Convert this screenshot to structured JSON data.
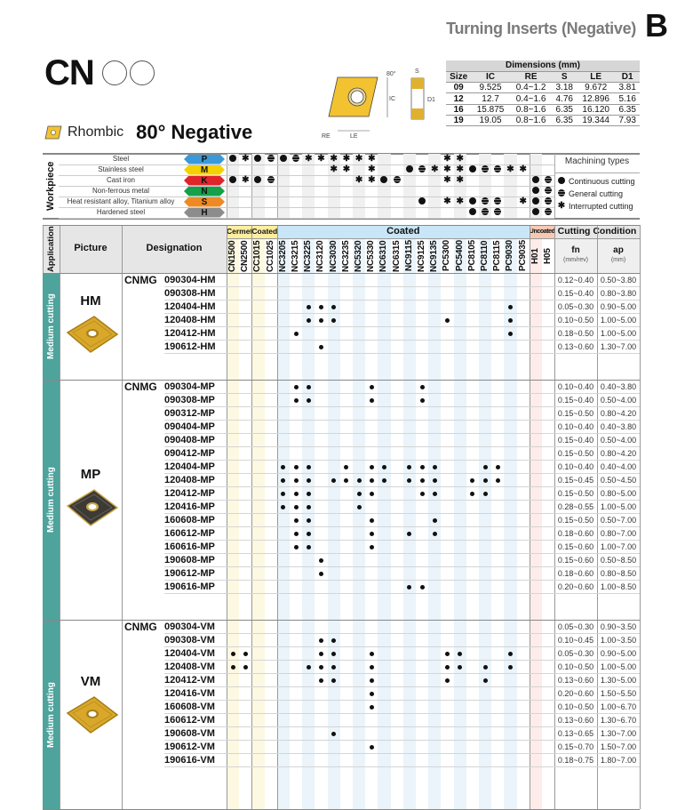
{
  "header": {
    "section_title": "Turning Inserts (Negative)",
    "chapter": "B",
    "shape_code": "CN",
    "shape_name": "Rhombic",
    "shape_desc": "80° Negative"
  },
  "drawing": {
    "angle": "80°",
    "labels": [
      "S",
      "IC",
      "D1",
      "RE",
      "LE"
    ]
  },
  "dimensions": {
    "title": "Dimensions (mm)",
    "columns": [
      "Size",
      "IC",
      "RE",
      "S",
      "LE",
      "D1"
    ],
    "rows": [
      [
        "09",
        "9.525",
        "0.4~1.2",
        "3.18",
        "9.672",
        "3.81"
      ],
      [
        "12",
        "12.7",
        "0.4~1.6",
        "4.76",
        "12.896",
        "5.16"
      ],
      [
        "16",
        "15.875",
        "0.8~1.6",
        "6.35",
        "16.120",
        "6.35"
      ],
      [
        "19",
        "19.05",
        "0.8~1.6",
        "6.35",
        "19.344",
        "7.93"
      ]
    ]
  },
  "workpiece": {
    "label": "Workpiece",
    "rows": [
      {
        "name": "Steel",
        "code": "P",
        "color": "#3a9ad9",
        "marks": "CICGCGIIIIII-----II-------"
      },
      {
        "name": "Stainless steel",
        "code": "M",
        "color": "#f5d000",
        "marks": "--------II-I--CGIIICGGII--"
      },
      {
        "name": "Cast iron",
        "code": "K",
        "color": "#e0242b",
        "marks": "CICG------IICG---II-----CG"
      },
      {
        "name": "Non-ferrous metal",
        "code": "N",
        "color": "#16a04a",
        "marks": "------------------------CG"
      },
      {
        "name": "Heat resistant alloy, Titanium alloy",
        "code": "S",
        "color": "#ee8a24",
        "marks": "---------------C-IICGG-ICG"
      },
      {
        "name": "Hardened steel",
        "code": "H",
        "color": "#8c8c8c",
        "marks": "-------------------CGG--CG"
      }
    ],
    "machining_types": {
      "title": "Machining types",
      "continuous": "Continuous cutting",
      "general": "General cutting",
      "interrupted": "Interrupted cutting"
    }
  },
  "table": {
    "headers": {
      "application": "Application",
      "picture": "Picture",
      "designation": "Designation",
      "cermet": "Cermet",
      "coated_small": "Coated",
      "coated": "Coated",
      "uncoated": "Uncoated",
      "cutting_condition": "Cutting Condition",
      "fn": "fn",
      "fn_unit": "(mm/rev)",
      "ap": "ap",
      "ap_unit": "(mm)"
    },
    "grades": [
      "CN1500",
      "CN2500",
      "CC1015",
      "CC1025",
      "NC3205",
      "NC3215",
      "NC3225",
      "NC3120",
      "NC3030",
      "NC3235",
      "NC5320",
      "NC5330",
      "NC6310",
      "NC6315",
      "NC9115",
      "NC9125",
      "NC9135",
      "PC5300",
      "PC5400",
      "PC8105",
      "PC8110",
      "PC8115",
      "PC9030",
      "PC9035",
      "H01",
      "H05"
    ],
    "sections": [
      {
        "application": "Medium cutting",
        "chipbreaker": "HM",
        "prefix": "CNMG",
        "insert_color": "gold",
        "rows": [
          {
            "d": "090304-HM",
            "fn": "0.12~0.40",
            "ap": "0.50~3.80",
            "dots": []
          },
          {
            "d": "090308-HM",
            "fn": "0.15~0.40",
            "ap": "0.80~3.80",
            "dots": []
          },
          {
            "d": "120404-HM",
            "fn": "0.05~0.30",
            "ap": "0.90~5.00",
            "dots": [
              "NC3225",
              "NC3120",
              "NC3030",
              "PC9030"
            ]
          },
          {
            "d": "120408-HM",
            "fn": "0.10~0.50",
            "ap": "1.00~5.00",
            "dots": [
              "NC3225",
              "NC3120",
              "NC3030",
              "PC5300",
              "PC9030"
            ]
          },
          {
            "d": "120412-HM",
            "fn": "0.18~0.50",
            "ap": "1.00~5.00",
            "dots": [
              "NC3215",
              "PC9030"
            ]
          },
          {
            "d": "190612-HM",
            "fn": "0.13~0.60",
            "ap": "1.30~7.00",
            "dots": [
              "NC3120"
            ]
          }
        ]
      },
      {
        "application": "Medium cutting",
        "chipbreaker": "MP",
        "prefix": "CNMG",
        "insert_color": "dark",
        "rows": [
          {
            "d": "090304-MP",
            "fn": "0.10~0.40",
            "ap": "0.40~3.80",
            "dots": [
              "NC3215",
              "NC3225",
              "NC5330",
              "NC9125"
            ]
          },
          {
            "d": "090308-MP",
            "fn": "0.15~0.40",
            "ap": "0.50~4.00",
            "dots": [
              "NC3215",
              "NC3225",
              "NC5330",
              "NC9125"
            ]
          },
          {
            "d": "090312-MP",
            "fn": "0.15~0.50",
            "ap": "0.80~4.20",
            "dots": []
          },
          {
            "d": "090404-MP",
            "fn": "0.10~0.40",
            "ap": "0.40~3.80",
            "dots": []
          },
          {
            "d": "090408-MP",
            "fn": "0.15~0.40",
            "ap": "0.50~4.00",
            "dots": []
          },
          {
            "d": "090412-MP",
            "fn": "0.15~0.50",
            "ap": "0.80~4.20",
            "dots": []
          },
          {
            "d": "120404-MP",
            "fn": "0.10~0.40",
            "ap": "0.40~4.00",
            "dots": [
              "NC3205",
              "NC3215",
              "NC3225",
              "NC3235",
              "NC5330",
              "NC6310",
              "NC9115",
              "NC9125",
              "NC9135",
              "PC8110",
              "PC8115"
            ]
          },
          {
            "d": "120408-MP",
            "fn": "0.15~0.45",
            "ap": "0.50~4.50",
            "dots": [
              "NC3205",
              "NC3215",
              "NC3225",
              "NC3030",
              "NC3235",
              "NC5320",
              "NC5330",
              "NC6310",
              "NC9115",
              "NC9125",
              "NC9135",
              "PC8105",
              "PC8110",
              "PC8115"
            ]
          },
          {
            "d": "120412-MP",
            "fn": "0.15~0.50",
            "ap": "0.80~5.00",
            "dots": [
              "NC3205",
              "NC3215",
              "NC3225",
              "NC5320",
              "NC5330",
              "NC9125",
              "NC9135",
              "PC8105",
              "PC8110"
            ]
          },
          {
            "d": "120416-MP",
            "fn": "0.28~0.55",
            "ap": "1.00~5.00",
            "dots": [
              "NC3205",
              "NC3215",
              "NC3225",
              "NC5320"
            ]
          },
          {
            "d": "160608-MP",
            "fn": "0.15~0.50",
            "ap": "0.50~7.00",
            "dots": [
              "NC3215",
              "NC3225",
              "NC5330",
              "NC9135"
            ]
          },
          {
            "d": "160612-MP",
            "fn": "0.18~0.60",
            "ap": "0.80~7.00",
            "dots": [
              "NC3215",
              "NC3225",
              "NC5330",
              "NC9115",
              "NC9135"
            ]
          },
          {
            "d": "160616-MP",
            "fn": "0.15~0.60",
            "ap": "1.00~7.00",
            "dots": [
              "NC3215",
              "NC3225",
              "NC5330"
            ]
          },
          {
            "d": "190608-MP",
            "fn": "0.15~0.60",
            "ap": "0.50~8.50",
            "dots": [
              "NC3120"
            ]
          },
          {
            "d": "190612-MP",
            "fn": "0.18~0.60",
            "ap": "0.80~8.50",
            "dots": [
              "NC3120"
            ]
          },
          {
            "d": "190616-MP",
            "fn": "0.20~0.60",
            "ap": "1.00~8.50",
            "dots": [
              "NC9115",
              "NC9125"
            ]
          }
        ]
      },
      {
        "application": "Medium cutting",
        "chipbreaker": "VM",
        "prefix": "CNMG",
        "insert_color": "gold",
        "rows": [
          {
            "d": "090304-VM",
            "fn": "0.05~0.30",
            "ap": "0.90~3.50",
            "dots": []
          },
          {
            "d": "090308-VM",
            "fn": "0.10~0.45",
            "ap": "1.00~3.50",
            "dots": [
              "NC3120",
              "NC3030"
            ]
          },
          {
            "d": "120404-VM",
            "fn": "0.05~0.30",
            "ap": "0.90~5.00",
            "dots": [
              "CN1500",
              "CN2500",
              "NC3120",
              "NC3030",
              "NC5330",
              "PC5300",
              "PC5400",
              "PC9030"
            ]
          },
          {
            "d": "120408-VM",
            "fn": "0.10~0.50",
            "ap": "1.00~5.00",
            "dots": [
              "CN1500",
              "CN2500",
              "NC3225",
              "NC3120",
              "NC3030",
              "NC5330",
              "PC5300",
              "PC5400",
              "PC8110",
              "PC9030"
            ]
          },
          {
            "d": "120412-VM",
            "fn": "0.13~0.60",
            "ap": "1.30~5.00",
            "dots": [
              "NC3120",
              "NC3030",
              "NC5330",
              "PC5300",
              "PC8110"
            ]
          },
          {
            "d": "120416-VM",
            "fn": "0.20~0.60",
            "ap": "1.50~5.50",
            "dots": [
              "NC5330"
            ]
          },
          {
            "d": "160608-VM",
            "fn": "0.10~0.50",
            "ap": "1.00~6.70",
            "dots": [
              "NC5330"
            ]
          },
          {
            "d": "160612-VM",
            "fn": "0.13~0.60",
            "ap": "1.30~6.70",
            "dots": []
          },
          {
            "d": "190608-VM",
            "fn": "0.13~0.65",
            "ap": "1.30~7.00",
            "dots": [
              "NC3030"
            ]
          },
          {
            "d": "190612-VM",
            "fn": "0.15~0.70",
            "ap": "1.50~7.00",
            "dots": [
              "NC5330"
            ]
          },
          {
            "d": "190616-VM",
            "fn": "0.18~0.75",
            "ap": "1.80~7.00",
            "dots": []
          }
        ]
      }
    ]
  },
  "colors": {
    "teal": "#4ea39c",
    "cermet": "#fdeea0",
    "coated": "#c8e6f7",
    "uncoated": "#f6c9b5",
    "insert_gold": "#d9a82a"
  }
}
